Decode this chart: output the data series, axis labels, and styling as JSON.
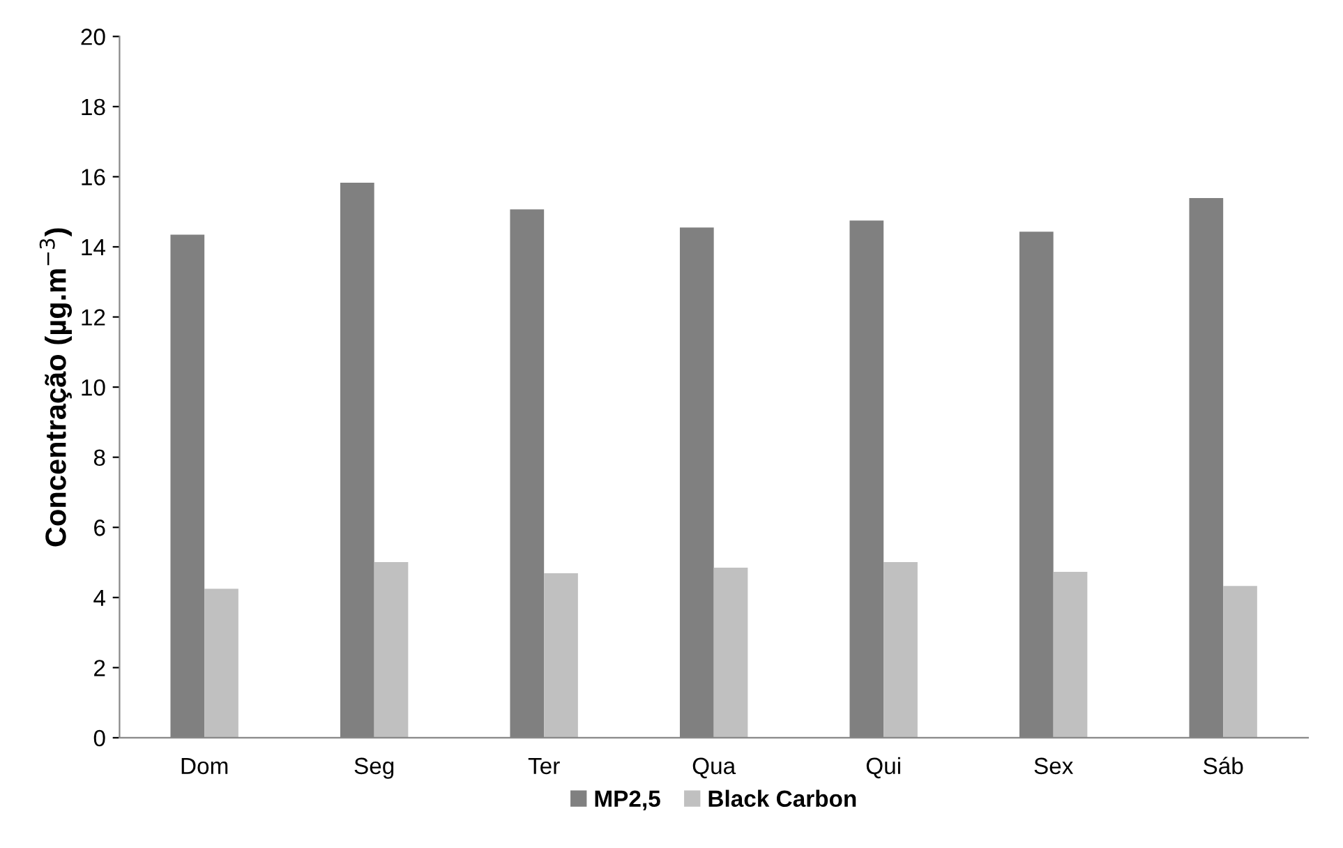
{
  "chart_data": {
    "type": "bar",
    "ylabel": "Concentração (µg.m$^{−3}$)",
    "categories": [
      "Dom",
      "Seg",
      "Ter",
      "Qua",
      "Qui",
      "Sex",
      "Sáb"
    ],
    "series": [
      {
        "name": "MP2,5",
        "color": "#808080",
        "values": [
          14.35,
          15.83,
          15.07,
          14.55,
          14.75,
          14.43,
          15.39
        ]
      },
      {
        "name": "Black Carbon",
        "color": "#c0c0c0",
        "values": [
          4.25,
          5.01,
          4.69,
          4.85,
          5.01,
          4.73,
          4.33
        ]
      }
    ],
    "ylim": [
      0,
      20
    ],
    "yticks": [
      0,
      2,
      4,
      6,
      8,
      10,
      12,
      14,
      16,
      18,
      20
    ],
    "grid": false,
    "legend": "bottom"
  }
}
